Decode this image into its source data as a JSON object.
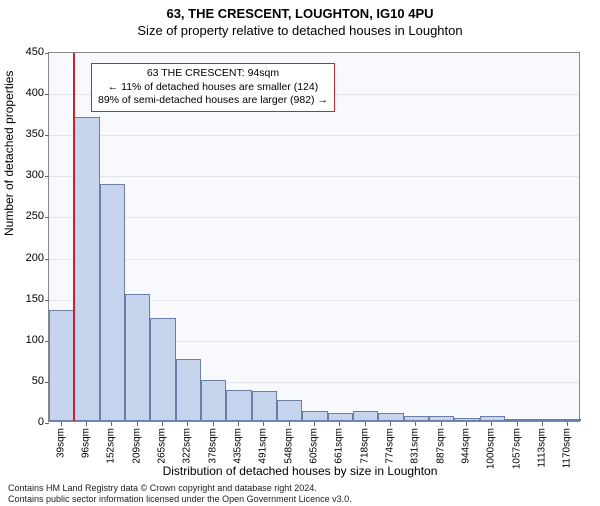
{
  "title_main": "63, THE CRESCENT, LOUGHTON, IG10 4PU",
  "title_sub": "Size of property relative to detached houses in Loughton",
  "ylabel": "Number of detached properties",
  "xlabel": "Distribution of detached houses by size in Loughton",
  "chart": {
    "type": "histogram",
    "background_color": "#f7f9fc",
    "grid_color": "#e1e6ee",
    "border_color": "#888888",
    "bar_fill": "#c6d4ee",
    "bar_border": "#6a7fa8",
    "marker_color": "#d02030",
    "ylim": [
      0,
      450
    ],
    "ytick_step": 50,
    "yticks": [
      0,
      50,
      100,
      150,
      200,
      250,
      300,
      350,
      400,
      450
    ],
    "xticks": [
      "39sqm",
      "96sqm",
      "152sqm",
      "209sqm",
      "265sqm",
      "322sqm",
      "378sqm",
      "435sqm",
      "491sqm",
      "548sqm",
      "605sqm",
      "661sqm",
      "718sqm",
      "774sqm",
      "831sqm",
      "887sqm",
      "944sqm",
      "1000sqm",
      "1057sqm",
      "1113sqm",
      "1170sqm"
    ],
    "values": [
      135,
      370,
      288,
      155,
      125,
      75,
      50,
      38,
      36,
      25,
      12,
      10,
      12,
      10,
      6,
      6,
      4,
      6,
      3,
      2,
      3
    ],
    "marker_bin_index": 1,
    "label_fontsize": 12,
    "tick_fontsize": 11,
    "xtick_fontsize": 10,
    "xtick_rotation": -90
  },
  "annotation": {
    "line1": "63 THE CRESCENT: 94sqm",
    "line2": "← 11% of detached houses are smaller (124)",
    "line3": "89% of semi-detached houses are larger (982) →",
    "border_color": "#d02030"
  },
  "footer": {
    "line1": "Contains HM Land Registry data © Crown copyright and database right 2024.",
    "line2": "Contains public sector information licensed under the Open Government Licence v3.0."
  }
}
